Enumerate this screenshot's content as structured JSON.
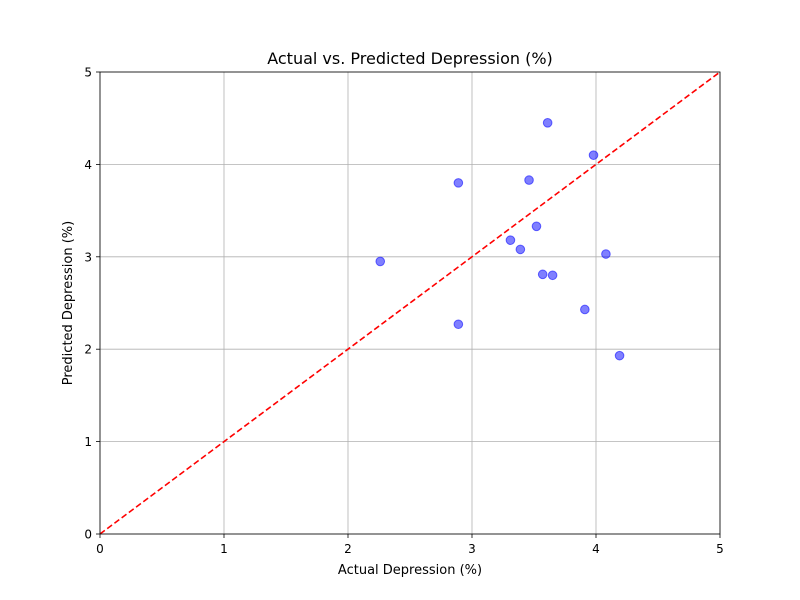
{
  "chart_data": {
    "type": "scatter",
    "title": "Actual vs. Predicted Depression (%)",
    "xlabel": "Actual Depression (%)",
    "ylabel": "Predicted Depression (%)",
    "xlim": [
      0,
      5
    ],
    "ylim": [
      0,
      5
    ],
    "xticks": [
      "0",
      "1",
      "2",
      "3",
      "4",
      "5"
    ],
    "yticks": [
      "0",
      "1",
      "2",
      "3",
      "4",
      "5"
    ],
    "grid": true,
    "point_color": "#0000ff",
    "reference_line": {
      "x": [
        0,
        5
      ],
      "y": [
        0,
        5
      ],
      "color": "#ff0000",
      "style": "dashed"
    },
    "points": [
      {
        "x": 2.26,
        "y": 2.95
      },
      {
        "x": 2.89,
        "y": 3.8
      },
      {
        "x": 2.89,
        "y": 2.27
      },
      {
        "x": 3.31,
        "y": 3.18
      },
      {
        "x": 3.39,
        "y": 3.08
      },
      {
        "x": 3.46,
        "y": 3.83
      },
      {
        "x": 3.52,
        "y": 3.33
      },
      {
        "x": 3.57,
        "y": 2.81
      },
      {
        "x": 3.61,
        "y": 4.45
      },
      {
        "x": 3.65,
        "y": 2.8
      },
      {
        "x": 3.91,
        "y": 2.43
      },
      {
        "x": 3.98,
        "y": 4.1
      },
      {
        "x": 4.08,
        "y": 3.03
      },
      {
        "x": 4.19,
        "y": 1.93
      }
    ]
  }
}
